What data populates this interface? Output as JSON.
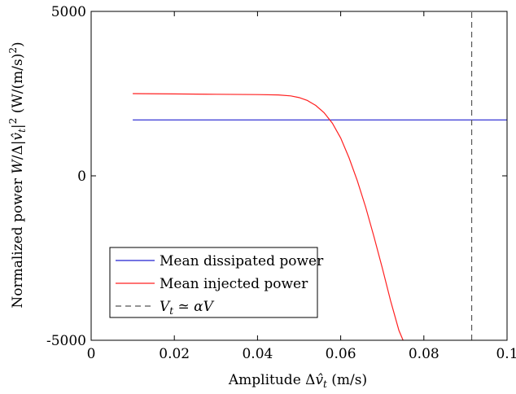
{
  "chart_data": {
    "type": "line",
    "xlabel": "Amplitude Δv̂_t (m/s)",
    "ylabel": "Normalized power W/Δ|v̂_t|² (W/(m/s)²)",
    "xlim": [
      0,
      0.1
    ],
    "ylim": [
      -5000,
      5000
    ],
    "x_ticks": [
      0,
      0.02,
      0.04,
      0.06,
      0.08,
      0.1
    ],
    "x_tick_labels": [
      "0",
      "0.02",
      "0.04",
      "0.06",
      "0.08",
      "0.1"
    ],
    "y_ticks": [
      -5000,
      0,
      5000
    ],
    "y_tick_labels": [
      "-5000",
      "0",
      "5000"
    ],
    "grid": false,
    "legend_position": "bottom-left",
    "series": [
      {
        "name": "Mean dissipated power",
        "color": "#2020d0",
        "style": "solid",
        "x": [
          0.01,
          0.1
        ],
        "y": [
          1700,
          1700
        ]
      },
      {
        "name": "Mean injected power",
        "color": "#ff2020",
        "style": "solid",
        "x": [
          0.01,
          0.02,
          0.03,
          0.04,
          0.045,
          0.048,
          0.05,
          0.052,
          0.054,
          0.056,
          0.058,
          0.06,
          0.062,
          0.064,
          0.066,
          0.068,
          0.07,
          0.072,
          0.074,
          0.075
        ],
        "y": [
          2500,
          2490,
          2480,
          2470,
          2460,
          2430,
          2380,
          2290,
          2140,
          1920,
          1600,
          1150,
          550,
          -150,
          -950,
          -1850,
          -2800,
          -3800,
          -4700,
          -5000
        ]
      },
      {
        "name": "V_t ≃ αV",
        "color": "#555555",
        "style": "dashed",
        "x": [
          0.0915,
          0.0915
        ],
        "y": [
          -5000,
          5000
        ]
      }
    ],
    "legend": [
      {
        "label": "Mean dissipated power"
      },
      {
        "label": "Mean injected power"
      },
      {
        "label_parts": [
          "V",
          "t",
          " ≃ ",
          "αV"
        ]
      }
    ]
  },
  "colors": {
    "dissipated": "#2020d0",
    "injected": "#ff2020",
    "threshold": "#555555",
    "axes": "#000000"
  }
}
